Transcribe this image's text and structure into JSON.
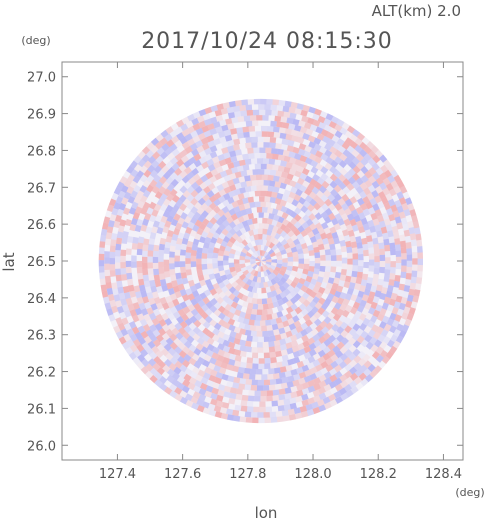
{
  "title": "2017/10/24 08:15:30",
  "altitude_label": "ALT(km) 2.0",
  "colors": {
    "positive": "#f08080",
    "negative": "#8a8af0",
    "frame": "#888888",
    "text": "#555555"
  },
  "chart_data": {
    "type": "heatmap",
    "title": "2017/10/24 08:15:30",
    "xlabel": "lon",
    "ylabel": "lat",
    "x_unit": "(deg)",
    "y_unit": "(deg)",
    "xlim": [
      127.23,
      128.46
    ],
    "ylim": [
      25.96,
      27.04
    ],
    "xticks": [
      127.4,
      127.6,
      127.8,
      128.0,
      128.2,
      128.4
    ],
    "xtick_labels": [
      "127.4",
      "127.6",
      "127.8",
      "128.0",
      "128.2",
      "128.4"
    ],
    "yticks": [
      26.0,
      26.1,
      26.2,
      26.3,
      26.4,
      26.5,
      26.6,
      26.7,
      26.8,
      26.9,
      27.0
    ],
    "ytick_labels": [
      "26.0",
      "26.1",
      "26.2",
      "26.3",
      "26.4",
      "26.5",
      "26.6",
      "26.7",
      "26.8",
      "26.9",
      "27.0"
    ],
    "center": {
      "lon": 127.84,
      "lat": 26.5
    },
    "radius_deg_lat": 0.44,
    "color_scale": "diverging red-blue",
    "grid": false
  }
}
